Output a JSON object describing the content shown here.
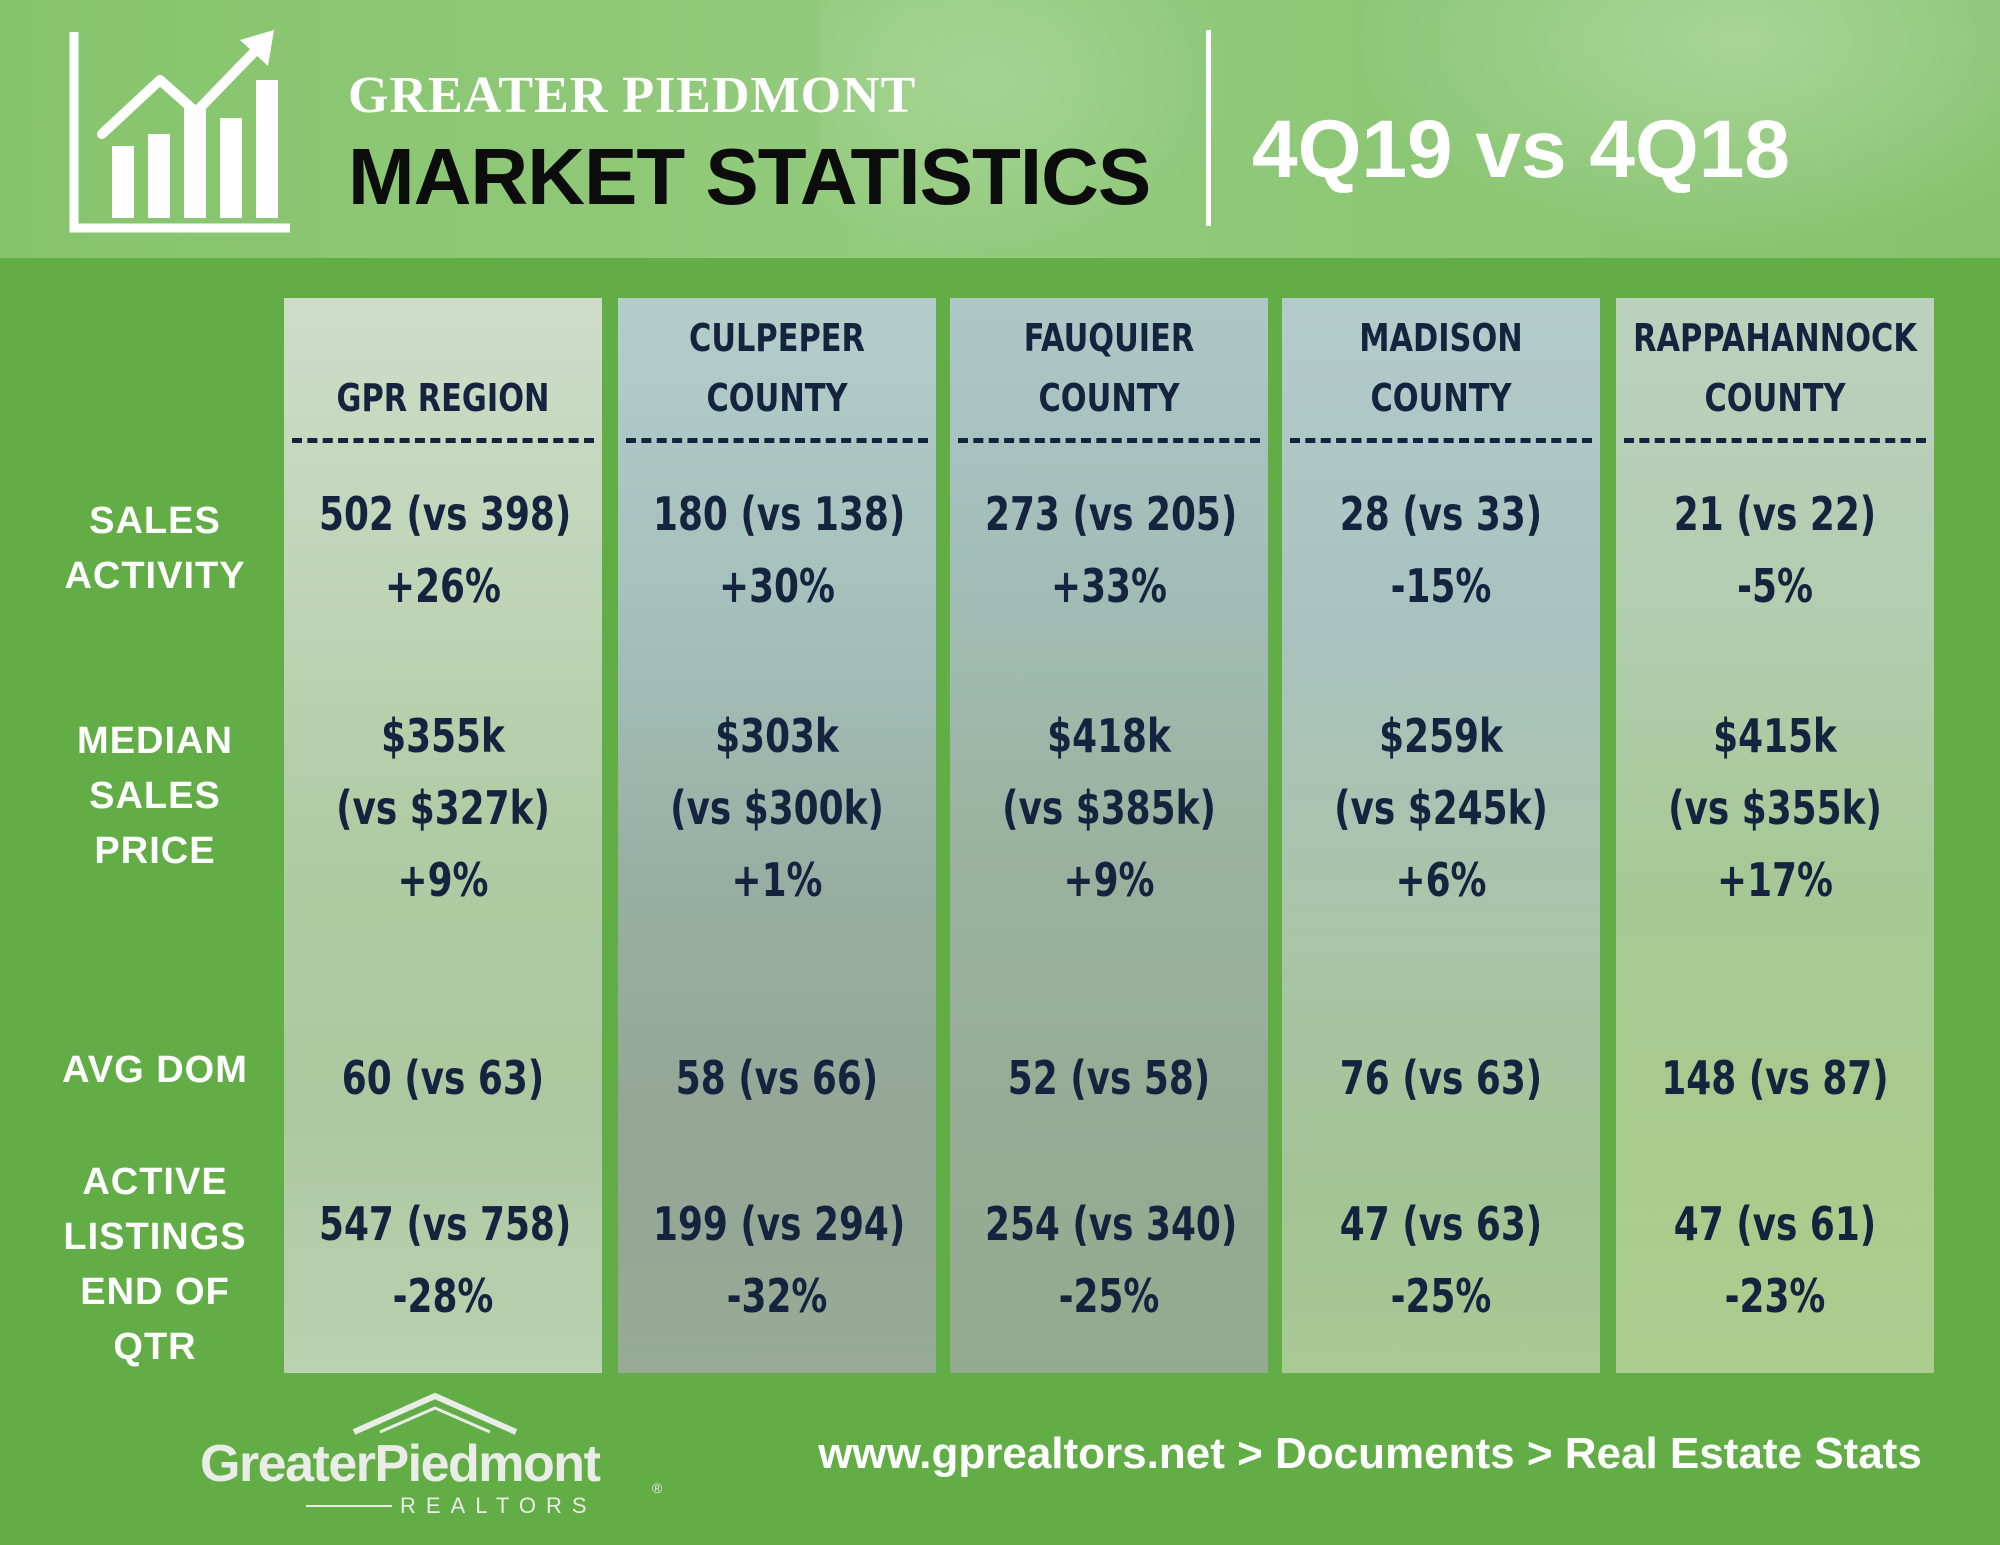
{
  "header": {
    "title_small": "GREATER PIEDMONT",
    "title_big": "MARKET STATISTICS",
    "period": "4Q19 vs 4Q18",
    "icon": "bar-chart-growth-icon"
  },
  "row_labels": {
    "sales": [
      "SALES",
      "ACTIVITY"
    ],
    "median": [
      "MEDIAN",
      "SALES",
      "PRICE"
    ],
    "dom": [
      "AVG DOM"
    ],
    "active": [
      "ACTIVE",
      "LISTINGS",
      "END OF",
      "QTR"
    ]
  },
  "columns": [
    {
      "head": [
        "GPR REGION"
      ],
      "sales": [
        "502 (vs 398)",
        "+26%"
      ],
      "median": [
        "$355k",
        "(vs $327k)",
        "+9%"
      ],
      "dom": "60 (vs 63)",
      "active": [
        "547 (vs 758)",
        "-28%"
      ]
    },
    {
      "head": [
        "CULPEPER",
        "COUNTY"
      ],
      "sales": [
        "180 (vs 138)",
        "+30%"
      ],
      "median": [
        "$303k",
        "(vs $300k)",
        "+1%"
      ],
      "dom": "58 (vs 66)",
      "active": [
        "199 (vs 294)",
        "-32%"
      ]
    },
    {
      "head": [
        "FAUQUIER",
        "COUNTY"
      ],
      "sales": [
        "273 (vs 205)",
        "+33%"
      ],
      "median": [
        "$418k",
        "(vs $385k)",
        "+9%"
      ],
      "dom": "52 (vs 58)",
      "active": [
        "254 (vs 340)",
        "-25%"
      ]
    },
    {
      "head": [
        "MADISON",
        "COUNTY"
      ],
      "sales": [
        "28 (vs 33)",
        "-15%"
      ],
      "median": [
        "$259k",
        "(vs $245k)",
        "+6%"
      ],
      "dom": "76 (vs 63)",
      "active": [
        "47 (vs 63)",
        "-25%"
      ]
    },
    {
      "head": [
        "RAPPAHANNOCK",
        "COUNTY"
      ],
      "sales": [
        "21 (vs 22)",
        "-5%"
      ],
      "median": [
        "$415k",
        "(vs $355k)",
        "+17%"
      ],
      "dom": "148 (vs 87)",
      "active": [
        "47 (vs 61)",
        "-23%"
      ]
    }
  ],
  "footer": {
    "logo_word": "GreaterPiedmont",
    "logo_sub": "REALTORS",
    "logo_reg": "®",
    "url": "www.gprealtors.net > Documents > Real Estate Stats"
  },
  "colors": {
    "background_green": "#62ad46",
    "header_green": "#8fc878",
    "text_navy": "#14243e",
    "text_white": "#ffffff"
  }
}
